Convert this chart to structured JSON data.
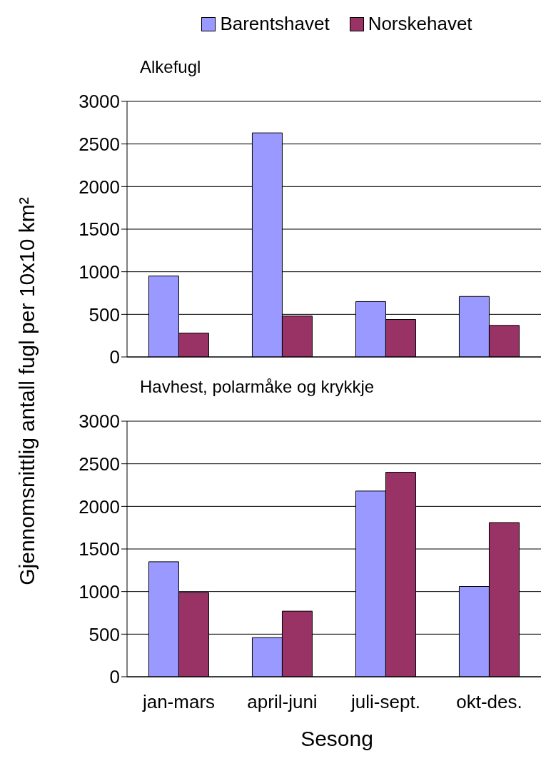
{
  "chart_data": [
    {
      "type": "bar",
      "title": "Alkefugl",
      "ylabel": "Gjennomsnittlig antall fugl per 10x10 km²",
      "categories": [
        null,
        null,
        null,
        null
      ],
      "series": [
        {
          "name": "Barentshavet",
          "color": "#9999ff",
          "values": [
            950,
            2630,
            650,
            710
          ]
        },
        {
          "name": "Norskehavet",
          "color": "#993366",
          "values": [
            280,
            480,
            440,
            370
          ]
        }
      ],
      "ylim": [
        0,
        3000
      ],
      "yticks": [
        0,
        500,
        1000,
        1500,
        2000,
        2500,
        3000
      ],
      "grid": "y",
      "legend": "top",
      "tick_labels": "y"
    },
    {
      "type": "bar",
      "title": "Havhest, polarmåke og krykkje",
      "xlabel": "Sesong",
      "categories": [
        "jan-mars",
        "april-juni",
        "juli-sept.",
        "okt-des."
      ],
      "series": [
        {
          "color": "#9999ff",
          "values": [
            1350,
            460,
            2180,
            1060
          ]
        },
        {
          "color": "#993366",
          "values": [
            990,
            770,
            2400,
            1810
          ]
        }
      ],
      "ylim": [
        0,
        3000
      ],
      "yticks": [
        0,
        500,
        1000,
        1500,
        2000,
        2500,
        3000
      ],
      "grid": "y"
    }
  ]
}
